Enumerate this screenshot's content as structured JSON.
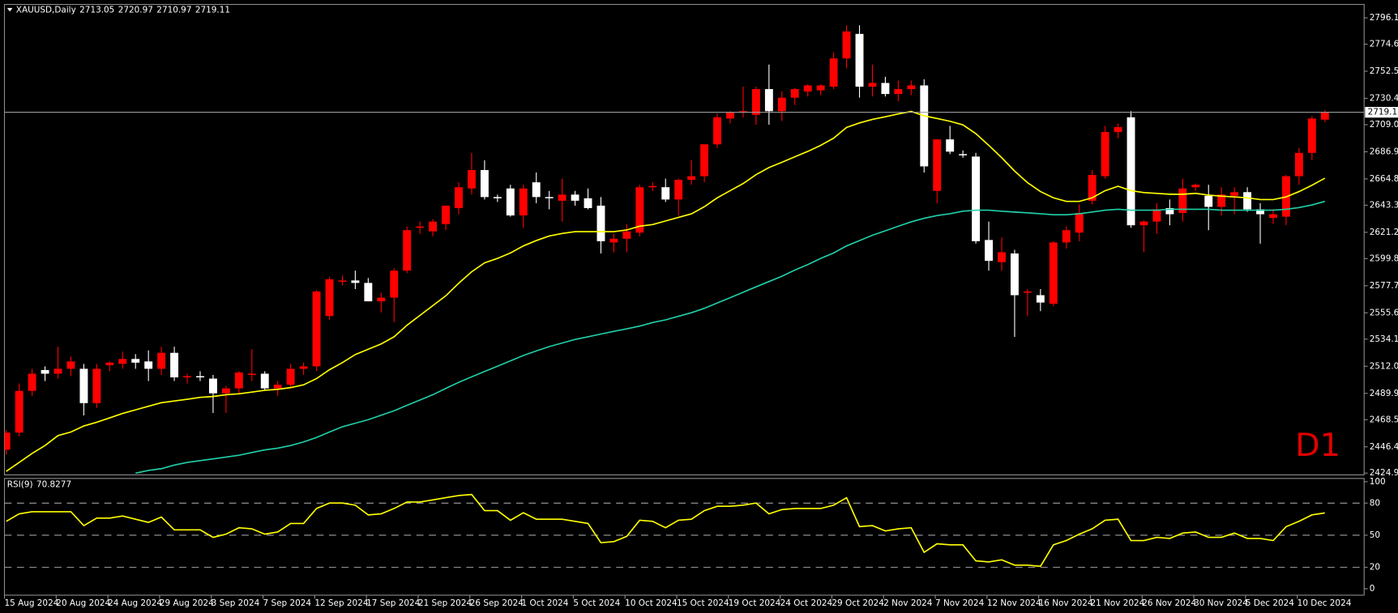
{
  "chart_data": [
    {
      "type": "candlestick",
      "symbol": "XAUUSD,Daily",
      "timeframe": "D1",
      "categories": [
        "15 Aug 2024",
        null,
        null,
        null,
        "20 Aug 2024",
        null,
        null,
        null,
        "24 Aug 2024",
        null,
        null,
        null,
        "29 Aug 2024",
        null,
        null,
        null,
        "3 Sep 2024",
        null,
        null,
        null,
        "7 Sep 2024",
        null,
        null,
        null,
        "12 Sep 2024",
        null,
        null,
        null,
        "17 Sep 2024",
        null,
        null,
        null,
        "21 Sep 2024",
        null,
        null,
        null,
        "26 Sep 2024",
        null,
        null,
        null,
        "1 Oct 2024",
        null,
        null,
        null,
        "5 Oct 2024",
        null,
        null,
        null,
        "10 Oct 2024",
        null,
        null,
        null,
        "15 Oct 2024",
        null,
        null,
        null,
        "19 Oct 2024",
        null,
        null,
        null,
        "24 Oct 2024",
        null,
        null,
        null,
        "29 Oct 2024",
        null,
        null,
        null,
        "2 Nov 2024",
        null,
        null,
        null,
        "7 Nov 2024",
        null,
        null,
        null,
        "12 Nov 2024",
        null,
        null,
        null,
        "16 Nov 2024",
        null,
        null,
        null,
        "21 Nov 2024",
        null,
        null,
        null,
        "26 Nov 2024",
        null,
        null,
        null,
        "30 Nov 2024",
        null,
        null,
        null,
        "5 Dec 2024",
        null,
        null,
        null,
        "10 Dec 2024",
        null,
        null
      ],
      "open": [
        2444,
        2458,
        2492,
        2509,
        2506,
        2510,
        2510,
        2482,
        2513,
        2514,
        2518,
        2516,
        2510,
        2523,
        2503,
        2504,
        2502,
        2490,
        2494,
        2505,
        2506,
        2494,
        2497,
        2510,
        2512,
        2553,
        2581,
        2582,
        2580,
        2565,
        2568,
        2590,
        2625,
        2622,
        2628,
        2641,
        2657,
        2672,
        2650,
        2657,
        2635,
        2662,
        2650,
        2647,
        2652,
        2649,
        2643,
        2613,
        2616,
        2621,
        2658,
        2658,
        2648,
        2664,
        2667,
        2693,
        2714,
        2719,
        2717,
        2738,
        2720,
        2731,
        2736,
        2737,
        2740,
        2763,
        2783,
        2740,
        2743,
        2734,
        2738,
        2741,
        2655,
        2697,
        2685,
        2683,
        2615,
        2597,
        2604,
        2572,
        2570,
        2563,
        2613,
        2621,
        2647,
        2667,
        2703,
        2715,
        2627,
        2630,
        2641,
        2637,
        2658,
        2651,
        2642,
        2651,
        2654,
        2640,
        2633,
        2634,
        2667,
        2686,
        2713.05
      ],
      "high": [
        2460,
        2498,
        2510,
        2512,
        2528,
        2520,
        2514,
        2514,
        2516,
        2524,
        2522,
        2525,
        2528,
        2528,
        2506,
        2508,
        2505,
        2496,
        2508,
        2526,
        2508,
        2500,
        2514,
        2515,
        2574,
        2585,
        2586,
        2590,
        2584,
        2572,
        2592,
        2626,
        2630,
        2632,
        2643,
        2662,
        2686,
        2680,
        2652,
        2660,
        2660,
        2670,
        2655,
        2665,
        2655,
        2657,
        2650,
        2620,
        2628,
        2660,
        2662,
        2665,
        2665,
        2680,
        2693,
        2718,
        2720,
        2740,
        2740,
        2758,
        2736,
        2739,
        2742,
        2742,
        2768,
        2790,
        2790,
        2758,
        2748,
        2745,
        2745,
        2746,
        2697,
        2708,
        2688,
        2686,
        2630,
        2617,
        2607,
        2575,
        2575,
        2614,
        2626,
        2644,
        2672,
        2708,
        2710,
        2720,
        2631,
        2645,
        2648,
        2665,
        2661,
        2660,
        2658,
        2658,
        2658,
        2645,
        2640,
        2668,
        2690,
        2716,
        2720.97
      ],
      "low": [
        2440,
        2455,
        2488,
        2500,
        2502,
        2504,
        2472,
        2478,
        2508,
        2510,
        2510,
        2500,
        2505,
        2500,
        2498,
        2500,
        2474,
        2474,
        2490,
        2500,
        2492,
        2488,
        2494,
        2505,
        2508,
        2550,
        2578,
        2575,
        2565,
        2556,
        2548,
        2588,
        2620,
        2618,
        2623,
        2636,
        2652,
        2648,
        2646,
        2634,
        2625,
        2645,
        2640,
        2630,
        2643,
        2640,
        2604,
        2605,
        2605,
        2618,
        2655,
        2646,
        2635,
        2660,
        2662,
        2690,
        2710,
        2715,
        2709,
        2709,
        2712,
        2725,
        2732,
        2733,
        2738,
        2755,
        2731,
        2732,
        2732,
        2728,
        2733,
        2670,
        2645,
        2685,
        2682,
        2612,
        2590,
        2590,
        2536,
        2553,
        2557,
        2561,
        2608,
        2614,
        2644,
        2665,
        2698,
        2625,
        2605,
        2620,
        2627,
        2630,
        2655,
        2623,
        2635,
        2636,
        2638,
        2612,
        2628,
        2627,
        2660,
        2680,
        2710.97
      ],
      "close": [
        2458,
        2492,
        2506,
        2506,
        2510,
        2516,
        2482,
        2510,
        2515,
        2518,
        2515,
        2510,
        2523,
        2503,
        2504,
        2503,
        2490,
        2494,
        2507,
        2506,
        2494,
        2497,
        2510,
        2512,
        2573,
        2583,
        2582,
        2580,
        2565,
        2568,
        2590,
        2623,
        2626,
        2630,
        2643,
        2658,
        2672,
        2650,
        2649,
        2635,
        2657,
        2650,
        2649,
        2652,
        2647,
        2641,
        2614,
        2616,
        2622,
        2658,
        2659,
        2648,
        2664,
        2667,
        2693,
        2715,
        2719,
        2720,
        2738,
        2720,
        2731,
        2738,
        2741,
        2741,
        2763,
        2785,
        2740,
        2743,
        2734,
        2738,
        2741,
        2675,
        2697,
        2687,
        2684,
        2614,
        2598,
        2605,
        2570,
        2573,
        2564,
        2613,
        2623,
        2637,
        2668,
        2703,
        2707,
        2627,
        2630,
        2640,
        2636,
        2657,
        2660,
        2642,
        2652,
        2654,
        2640,
        2636,
        2636,
        2667,
        2686,
        2714,
        2719.11
      ],
      "up_color": "#ff0000",
      "down_color": "#ffffff",
      "current_price_line": true,
      "overlays": [
        {
          "color": "#ffff00",
          "values": [
            2426.4,
            2433.7,
            2441.0,
            2447.5,
            2455.5,
            2458.4,
            2463.4,
            2466.4,
            2470.0,
            2473.6,
            2476.5,
            2479.4,
            2482.3,
            2483.8,
            2485.2,
            2486.7,
            2487.4,
            2488.9,
            2489.6,
            2491.0,
            2492.5,
            2493.2,
            2494.7,
            2496.9,
            2502.0,
            2509.2,
            2515.0,
            2521.6,
            2526.0,
            2530.3,
            2536.1,
            2545.5,
            2553.5,
            2561.5,
            2569.5,
            2579.7,
            2589.1,
            2596.4,
            2600.0,
            2604.4,
            2610.2,
            2614.5,
            2618.2,
            2620.3,
            2621.8,
            2621.8,
            2621.8,
            2621.8,
            2623.2,
            2626.2,
            2627.6,
            2630.5,
            2633.4,
            2636.3,
            2642.1,
            2649.4,
            2655.2,
            2661.0,
            2668.3,
            2674.1,
            2678.4,
            2682.8,
            2687.2,
            2692.2,
            2698.0,
            2706.8,
            2710.4,
            2713.3,
            2715.5,
            2717.7,
            2719.8,
            2716.2,
            2714.0,
            2711.8,
            2708.9,
            2701.7,
            2692.2,
            2682.1,
            2671.2,
            2661.7,
            2654.5,
            2649.4,
            2646.5,
            2646.5,
            2649.4,
            2655.2,
            2658.8,
            2655.2,
            2653.7,
            2653.0,
            2652.3,
            2652.3,
            2653.0,
            2651.6,
            2650.8,
            2650.1,
            2649.4,
            2647.9,
            2647.9,
            2650.1,
            2654.5,
            2659.6,
            2665.4
          ]
        },
        {
          "color": "#20d0a8",
          "values": [
            null,
            null,
            null,
            null,
            null,
            null,
            null,
            null,
            null,
            null,
            2424.9,
            2427.1,
            2428.6,
            2431.5,
            2433.7,
            2435.1,
            2436.6,
            2438.0,
            2439.5,
            2441.7,
            2443.9,
            2445.3,
            2447.5,
            2450.4,
            2454.0,
            2458.4,
            2462.7,
            2465.6,
            2468.5,
            2472.2,
            2475.8,
            2480.2,
            2484.5,
            2488.9,
            2494.0,
            2499.0,
            2503.4,
            2507.8,
            2512.1,
            2516.5,
            2520.8,
            2524.5,
            2528.1,
            2531.0,
            2533.9,
            2536.1,
            2538.3,
            2540.5,
            2542.6,
            2544.8,
            2547.7,
            2549.9,
            2552.8,
            2555.7,
            2559.3,
            2563.7,
            2568.0,
            2572.4,
            2576.8,
            2581.1,
            2585.5,
            2590.5,
            2594.9,
            2600.0,
            2604.4,
            2610.2,
            2614.5,
            2618.9,
            2622.5,
            2626.2,
            2629.8,
            2632.7,
            2634.9,
            2636.4,
            2638.5,
            2639.3,
            2639.3,
            2638.5,
            2637.8,
            2637.1,
            2636.4,
            2635.6,
            2635.6,
            2636.4,
            2637.8,
            2639.3,
            2640.0,
            2639.3,
            2639.3,
            2639.3,
            2640.0,
            2640.0,
            2640.0,
            2640.0,
            2639.3,
            2639.3,
            2639.3,
            2639.3,
            2639.3,
            2640.0,
            2641.4,
            2643.6,
            2646.5
          ]
        }
      ],
      "ylim": [
        2423.5,
        2807.0
      ],
      "yticks": [
        {
          "value": 2796.1,
          "label": "2796.10"
        },
        {
          "value": 2774.65,
          "label": "2774.65"
        },
        {
          "value": 2752.55,
          "label": "2752.55"
        },
        {
          "value": 2730.45,
          "label": "2730.45"
        },
        {
          "value": 2709.0,
          "label": "2709.00"
        },
        {
          "value": 2686.9,
          "label": "2686.90"
        },
        {
          "value": 2664.8,
          "label": "2664.80"
        },
        {
          "value": 2643.35,
          "label": "2643.35"
        },
        {
          "value": 2621.25,
          "label": "2621.25"
        },
        {
          "value": 2599.8,
          "label": "2599.80"
        },
        {
          "value": 2577.7,
          "label": "2577.70"
        },
        {
          "value": 2555.6,
          "label": "2555.60"
        },
        {
          "value": 2534.15,
          "label": "2534.15"
        },
        {
          "value": 2512.05,
          "label": "2512.05"
        },
        {
          "value": 2489.95,
          "label": "2489.95"
        },
        {
          "value": 2468.5,
          "label": "2468.50"
        },
        {
          "value": 2446.4,
          "label": "2446.40"
        },
        {
          "value": 2424.95,
          "label": "2424.95"
        }
      ]
    },
    {
      "type": "line",
      "name": "RSI(9)",
      "color": "#ffff00",
      "values": [
        63,
        70,
        72,
        72,
        72,
        72,
        59,
        66,
        66,
        68,
        65,
        62,
        67,
        55,
        55,
        55,
        48,
        51,
        57,
        56,
        51,
        53,
        61,
        61,
        75,
        80,
        80,
        78,
        69,
        70,
        75,
        81,
        81,
        83,
        85,
        87,
        88,
        73,
        73,
        64,
        71,
        65,
        65,
        65,
        63,
        61,
        43,
        44,
        49,
        64,
        63,
        57,
        64,
        65,
        73,
        77,
        77,
        78,
        80,
        70,
        74,
        75,
        75,
        75,
        78,
        85,
        58,
        59,
        54,
        56,
        57,
        34,
        42,
        41,
        41,
        26,
        25,
        27,
        22,
        22,
        21,
        41,
        45,
        51,
        56,
        64,
        65,
        45,
        45,
        48,
        47,
        52,
        53,
        48,
        48,
        52,
        47,
        47,
        45,
        58,
        63,
        69,
        70.8277
      ],
      "ylim": [
        -6,
        103
      ],
      "yticks": [
        100,
        80,
        50,
        20,
        0
      ],
      "levels": [
        80,
        50,
        20
      ]
    }
  ]
}
